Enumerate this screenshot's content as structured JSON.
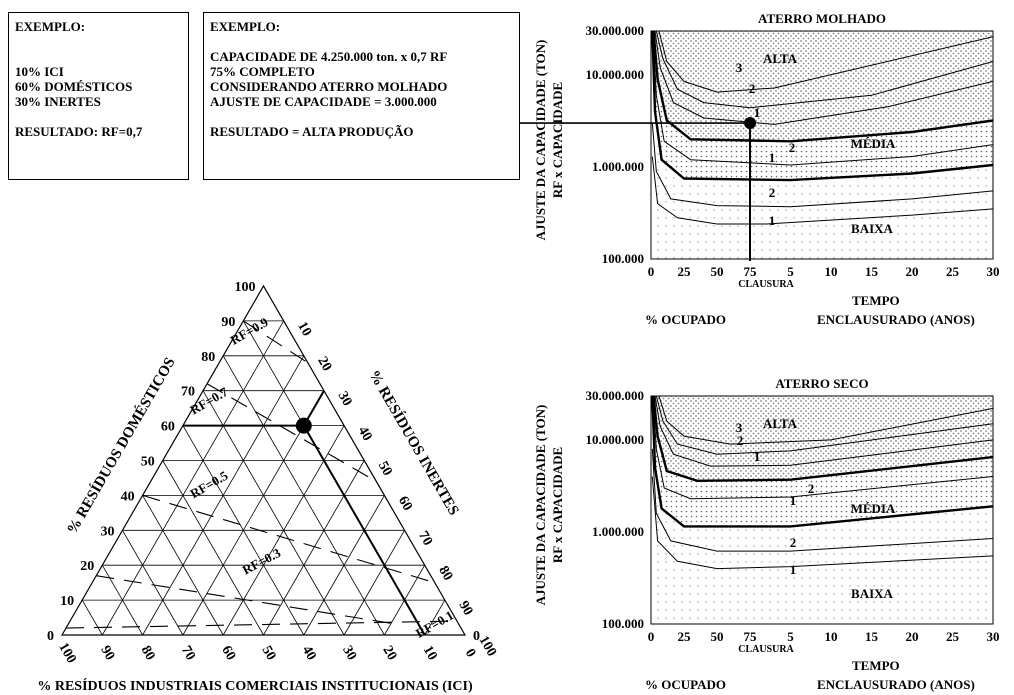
{
  "example_left": {
    "title": "EXEMPLO:",
    "lines": [
      "10% ICI",
      "60% DOMÉSTICOS",
      "30% INERTES"
    ],
    "result": "RESULTADO: RF=0,7"
  },
  "example_right": {
    "title": "EXEMPLO:",
    "lines": [
      "CAPACIDADE DE 4.250.000 ton. x 0,7 RF",
      "75% COMPLETO",
      "CONSIDERANDO ATERRO MOLHADO",
      "AJUSTE DE CAPACIDADE = 3.000.000"
    ],
    "result": "RESULTADO = ALTA PRODUÇÃO"
  },
  "ternary": {
    "left_axis_label": "% RESÍDUOS DOMÉSTICOS",
    "right_axis_label": "% RESÍDUOS INERTES",
    "bottom_axis_label": "% RESÍDUOS INDUSTRIAIS COMERCIAIS INSTITUCIONAIS (ICI)",
    "left_ticks": [
      "0",
      "10",
      "20",
      "30",
      "40",
      "50",
      "60",
      "70",
      "80",
      "90",
      "100"
    ],
    "right_ticks": [
      "0",
      "10",
      "20",
      "30",
      "40",
      "50",
      "60",
      "70",
      "80",
      "90",
      "100"
    ],
    "bottom_ticks": [
      "100",
      "90",
      "80",
      "70",
      "60",
      "50",
      "40",
      "30",
      "20",
      "10",
      "0"
    ],
    "rf_labels": [
      "RF=0.9",
      "RF=0.7",
      "RF=0.5",
      "RF=0.3",
      "RF=0.1"
    ],
    "example_point": {
      "ici": 10,
      "domestic": 60,
      "inert": 30
    }
  },
  "chart_data": [
    {
      "type": "line",
      "title": "ATERRO MOLHADO",
      "ylabel": "AJUSTE DA CAPACIDADE (TON)",
      "ylabel2": "RF x CAPACIDADE",
      "y_scale": "log",
      "ylim": [
        100000,
        30000000
      ],
      "y_ticks": [
        "100.000",
        "1.000.000",
        "10.000.000",
        "30.000.000"
      ],
      "x_ticks_left": [
        "0",
        "25",
        "50",
        "75"
      ],
      "x_ticks_right": [
        "5",
        "10",
        "15",
        "20",
        "25",
        "30"
      ],
      "closure_label": "CLAUSURA",
      "xlabel_left": "% OCUPADO",
      "xlabel_right_1": "TEMPO",
      "xlabel_right_2": "ENCLAUSURADO (ANOS)",
      "zones": [
        "ALTA",
        "MÉDIA",
        "BAIXA"
      ],
      "curve_labels": [
        "3",
        "2",
        "1",
        "2",
        "1",
        "2",
        "1"
      ],
      "example_point": {
        "x": "75",
        "y": 3000000
      }
    },
    {
      "type": "line",
      "title": "ATERRO SECO",
      "ylabel": "AJUSTE DA CAPACIDADE (TON)",
      "ylabel2": "RF x CAPACIDADE",
      "y_scale": "log",
      "ylim": [
        100000,
        30000000
      ],
      "y_ticks": [
        "100.000",
        "1.000.000",
        "10.000.000",
        "30.000.000"
      ],
      "x_ticks_left": [
        "0",
        "25",
        "50",
        "75"
      ],
      "x_ticks_right": [
        "5",
        "10",
        "15",
        "20",
        "25",
        "30"
      ],
      "closure_label": "CLAUSURA",
      "xlabel_left": "% OCUPADO",
      "xlabel_right_1": "TEMPO",
      "xlabel_right_2": "ENCLAUSURADO (ANOS)",
      "zones": [
        "ALTA",
        "MÉDIA",
        "BAIXA"
      ],
      "curve_labels": [
        "3",
        "2",
        "1",
        "2",
        "1",
        "2",
        "1"
      ]
    }
  ]
}
